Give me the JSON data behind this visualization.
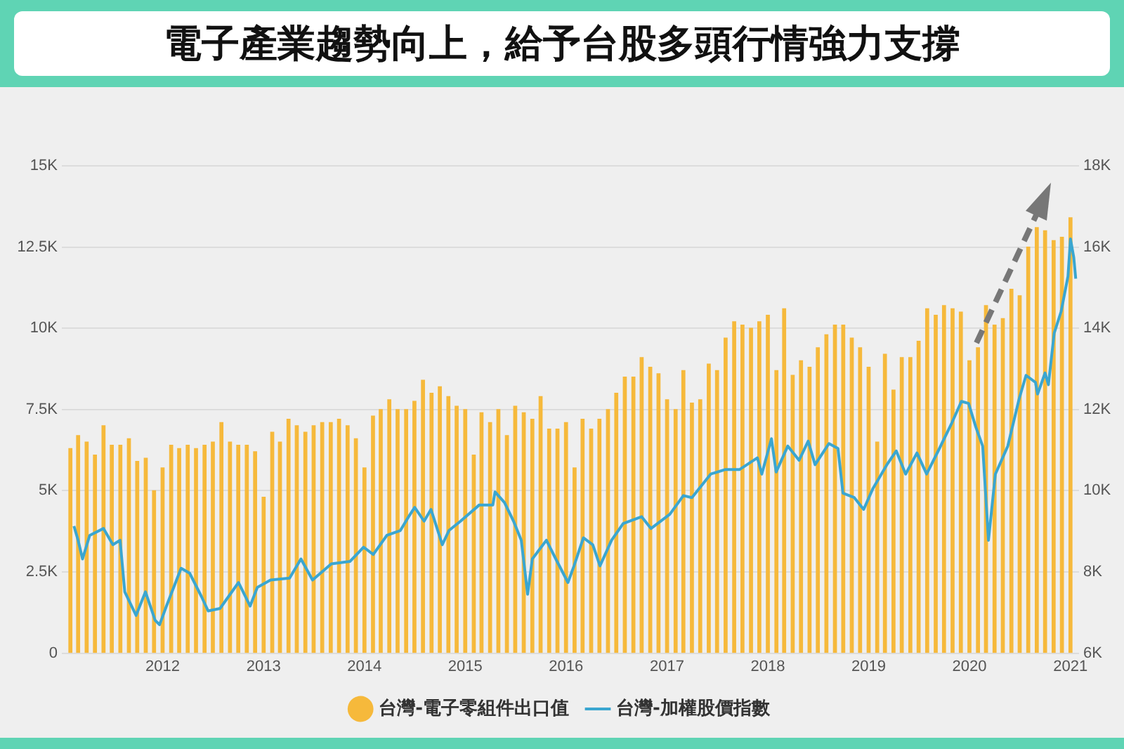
{
  "chart_data": {
    "type": "bar",
    "title": "電子產業趨勢向上，給予台股多頭行情強力支撐",
    "xlim": [
      "2011-01",
      "2021-02"
    ],
    "xticks": [
      "2012",
      "2013",
      "2014",
      "2015",
      "2016",
      "2017",
      "2018",
      "2019",
      "2020",
      "2021"
    ],
    "ylim": [
      0,
      15000
    ],
    "yticks": [
      {
        "value": 0,
        "label": "0"
      },
      {
        "value": 2500,
        "label": "2.5K"
      },
      {
        "value": 5000,
        "label": "5K"
      },
      {
        "value": 7500,
        "label": "7.5K"
      },
      {
        "value": 10000,
        "label": "10K"
      },
      {
        "value": 12500,
        "label": "12.5K"
      },
      {
        "value": 15000,
        "label": "15K"
      }
    ],
    "y2lim": [
      6000,
      18000
    ],
    "y2ticks": [
      {
        "value": 6000,
        "label": "6K"
      },
      {
        "value": 8000,
        "label": "8K"
      },
      {
        "value": 10000,
        "label": "10K"
      },
      {
        "value": 12000,
        "label": "12K"
      },
      {
        "value": 14000,
        "label": "14K"
      },
      {
        "value": 16000,
        "label": "16K"
      },
      {
        "value": 18000,
        "label": "18K"
      }
    ],
    "grid": "y",
    "legend": "bottom",
    "series": [
      {
        "name": "台灣-電子零組件出口值",
        "color": "#f6b93b",
        "x": [
          "2011-02",
          "2011-03",
          "2011-04",
          "2011-05",
          "2011-06",
          "2011-07",
          "2011-08",
          "2011-09",
          "2011-10",
          "2011-11",
          "2011-12",
          "2012-01",
          "2012-02",
          "2012-03",
          "2012-04",
          "2012-05",
          "2012-06",
          "2012-07",
          "2012-08",
          "2012-09",
          "2012-10",
          "2012-11",
          "2012-12",
          "2013-01",
          "2013-02",
          "2013-03",
          "2013-04",
          "2013-05",
          "2013-06",
          "2013-07",
          "2013-08",
          "2013-09",
          "2013-10",
          "2013-11",
          "2013-12",
          "2014-01",
          "2014-02",
          "2014-03",
          "2014-04",
          "2014-05",
          "2014-06",
          "2014-07",
          "2014-08",
          "2014-09",
          "2014-10",
          "2014-11",
          "2014-12",
          "2015-01",
          "2015-02",
          "2015-03",
          "2015-04",
          "2015-05",
          "2015-06",
          "2015-07",
          "2015-08",
          "2015-09",
          "2015-10",
          "2015-11",
          "2015-12",
          "2016-01",
          "2016-02",
          "2016-03",
          "2016-04",
          "2016-05",
          "2016-06",
          "2016-07",
          "2016-08",
          "2016-09",
          "2016-10",
          "2016-11",
          "2016-12",
          "2017-01",
          "2017-02",
          "2017-03",
          "2017-04",
          "2017-05",
          "2017-06",
          "2017-07",
          "2017-08",
          "2017-09",
          "2017-10",
          "2017-11",
          "2017-12",
          "2018-01",
          "2018-02",
          "2018-03",
          "2018-04",
          "2018-05",
          "2018-06",
          "2018-07",
          "2018-08",
          "2018-09",
          "2018-10",
          "2018-11",
          "2018-12",
          "2019-01",
          "2019-02",
          "2019-03",
          "2019-04",
          "2019-05",
          "2019-06",
          "2019-07",
          "2019-08",
          "2019-09",
          "2019-10",
          "2019-11",
          "2019-12",
          "2020-01",
          "2020-02",
          "2020-03",
          "2020-04",
          "2020-05",
          "2020-06",
          "2020-07",
          "2020-08",
          "2020-09",
          "2020-10",
          "2020-11",
          "2020-12",
          "2021-01"
        ],
        "values": [
          6300,
          6700,
          6500,
          6100,
          7000,
          6400,
          6400,
          6600,
          5900,
          6000,
          5000,
          5700,
          6400,
          6300,
          6400,
          6300,
          6400,
          6500,
          7100,
          6500,
          6400,
          6400,
          6200,
          4800,
          6800,
          6500,
          7200,
          7000,
          6800,
          7000,
          7100,
          7100,
          7200,
          7000,
          6600,
          5700,
          7300,
          7500,
          7800,
          7500,
          7500,
          7750,
          8400,
          8000,
          8200,
          7900,
          7600,
          7500,
          6100,
          7400,
          7100,
          7500,
          6700,
          7600,
          7400,
          7200,
          7900,
          6900,
          6900,
          7100,
          5700,
          7200,
          6900,
          7200,
          7500,
          8000,
          8500,
          8500,
          9100,
          8800,
          8600,
          7800,
          7500,
          8700,
          7700,
          7800,
          8900,
          8700,
          9700,
          10200,
          10100,
          10000,
          10200,
          10400,
          8700,
          10600,
          8550,
          9000,
          8800,
          9400,
          9800,
          10100,
          10100,
          9700,
          9400,
          8800,
          6500,
          9200,
          8100,
          9100,
          9100,
          9600,
          10600,
          10400,
          10700,
          10600,
          10500,
          9000,
          9400,
          10700,
          10100,
          10300,
          11200,
          11000,
          12500,
          13100,
          13000,
          12700,
          12800,
          13400
        ]
      },
      {
        "name": "台灣-加權股價指數",
        "type": "line",
        "axis": "y2",
        "color": "#3aa6d0",
        "x": [
          "2011-02-14",
          "2011-03-01",
          "2011-03-17",
          "2011-04-12",
          "2011-06-01",
          "2011-07-05",
          "2011-07-31",
          "2011-08-17",
          "2011-09-27",
          "2011-10-31",
          "2011-12-05",
          "2011-12-21",
          "2012-01-15",
          "2012-03-08",
          "2012-04-08",
          "2012-05-21",
          "2012-06-14",
          "2012-07-27",
          "2012-10-02",
          "2012-11-13",
          "2012-12-09",
          "2013-01-26",
          "2013-04-05",
          "2013-05-16",
          "2013-06-27",
          "2013-09-03",
          "2013-11-10",
          "2013-12-29",
          "2014-02-02",
          "2014-03-23",
          "2014-05-11",
          "2014-06-10",
          "2014-07-02",
          "2014-08-05",
          "2014-08-30",
          "2014-10-10",
          "2014-11-03",
          "2014-12-15",
          "2015-02-21",
          "2015-04-11",
          "2015-04-19",
          "2015-05-23",
          "2015-06-25",
          "2015-07-23",
          "2015-08-15",
          "2015-09-01",
          "2015-10-22",
          "2015-11-25",
          "2016-01-08",
          "2016-01-30",
          "2016-03-04",
          "2016-04-07",
          "2016-05-03",
          "2016-06-14",
          "2016-07-26",
          "2016-10-01",
          "2016-11-04",
          "2017-01-11",
          "2017-03-01",
          "2017-04-01",
          "2017-06-08",
          "2017-07-30",
          "2017-09-20",
          "2017-11-24",
          "2017-12-10",
          "2018-01-14",
          "2018-01-31",
          "2018-03-14",
          "2018-04-24",
          "2018-05-27",
          "2018-06-21",
          "2018-08-10",
          "2018-09-12",
          "2018-09-30",
          "2018-11-10",
          "2018-12-14",
          "2019-01-17",
          "2019-03-08",
          "2019-04-11",
          "2019-05-15",
          "2019-06-25",
          "2019-07-30",
          "2019-09-10",
          "2019-10-30",
          "2019-12-03",
          "2019-12-29",
          "2020-01-24",
          "2020-02-18",
          "2020-03-10",
          "2020-04-04",
          "2020-05-19",
          "2020-06-29",
          "2020-07-24",
          "2020-08-27",
          "2020-09-04",
          "2020-10-01",
          "2020-10-13",
          "2020-11-03",
          "2020-11-28",
          "2020-12-23",
          "2021-01-01",
          "2021-01-13",
          "2021-01-20"
        ],
        "values": [
          9130,
          8780,
          8320,
          8900,
          9070,
          8670,
          8780,
          7510,
          6930,
          7510,
          6810,
          6700,
          7160,
          8090,
          7970,
          7390,
          7040,
          7100,
          7740,
          7160,
          7620,
          7800,
          7850,
          8320,
          7800,
          8200,
          8260,
          8610,
          8430,
          8900,
          9020,
          9360,
          9590,
          9250,
          9540,
          8670,
          9020,
          9250,
          9650,
          9650,
          9970,
          9710,
          9250,
          8780,
          7450,
          8320,
          8780,
          8320,
          7740,
          8150,
          8840,
          8670,
          8150,
          8780,
          9190,
          9360,
          9070,
          9420,
          9880,
          9830,
          10410,
          10520,
          10520,
          10810,
          10410,
          11280,
          10460,
          11100,
          10750,
          11220,
          10640,
          11160,
          11040,
          9940,
          9830,
          9540,
          10060,
          10640,
          10980,
          10410,
          10930,
          10410,
          10980,
          11680,
          12200,
          12150,
          11570,
          11100,
          8780,
          10410,
          11100,
          12260,
          12840,
          12670,
          12380,
          12900,
          12610,
          13880,
          14410,
          15280,
          16200,
          15740,
          15220
        ]
      }
    ]
  }
}
